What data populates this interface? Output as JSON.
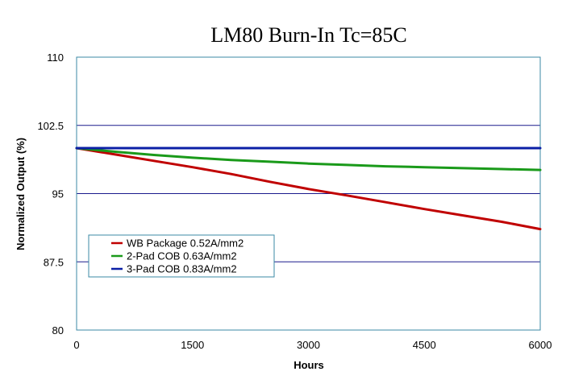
{
  "chart_data": {
    "type": "line",
    "title": "LM80 Burn-In Tc=85C",
    "xlabel": "Hours",
    "ylabel": "Normalized Output (%)",
    "xlim": [
      0,
      6000
    ],
    "ylim": [
      80,
      110
    ],
    "xticks": [
      0,
      1500,
      3000,
      4500,
      6000
    ],
    "xtick_labels": [
      "0",
      "1500",
      "3000",
      "4500",
      "6000"
    ],
    "yticks": [
      80,
      87.5,
      95,
      102.5,
      110
    ],
    "ytick_labels": [
      "80",
      "87.5",
      "95",
      "102.5",
      "110"
    ],
    "gridlines_y": [
      87.5,
      95,
      102.5
    ],
    "grid_color": "#1a1a8c",
    "legend_position": "lower-left",
    "series": [
      {
        "name": "WB Package 0.52A/mm2",
        "color": "#c00000",
        "x": [
          0,
          500,
          1000,
          1500,
          2000,
          2500,
          3000,
          3500,
          4000,
          4500,
          5000,
          5500,
          6000
        ],
        "y": [
          100,
          99.3,
          98.6,
          97.9,
          97.15,
          96.3,
          95.5,
          94.8,
          94.05,
          93.3,
          92.6,
          91.9,
          91.1
        ]
      },
      {
        "name": "2-Pad COB 0.63A/mm2",
        "color": "#1a9a1a",
        "x": [
          0,
          500,
          1000,
          1500,
          2000,
          2500,
          3000,
          3500,
          4000,
          4500,
          5000,
          5500,
          6000
        ],
        "y": [
          100,
          99.6,
          99.25,
          98.95,
          98.7,
          98.5,
          98.3,
          98.15,
          98.0,
          97.9,
          97.8,
          97.7,
          97.6
        ]
      },
      {
        "name": "3-Pad COB 0.83A/mm2",
        "color": "#0b1fa6",
        "x": [
          0,
          500,
          1000,
          1500,
          2000,
          2500,
          3000,
          3500,
          4000,
          4500,
          5000,
          5500,
          6000
        ],
        "y": [
          100,
          100,
          100,
          100,
          100,
          100,
          100,
          100,
          100,
          100,
          100,
          100,
          100
        ]
      }
    ]
  }
}
